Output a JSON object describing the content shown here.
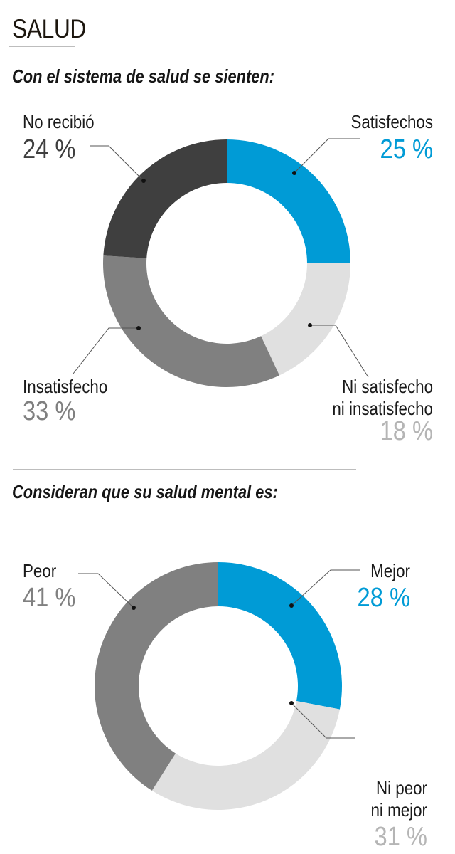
{
  "header": {
    "title": "SALUD"
  },
  "chart_data": [
    {
      "type": "pie",
      "variant": "donut",
      "title": "Con el sistema de salud se sienten:",
      "unit": "%",
      "start": "top, clockwise",
      "slices": [
        {
          "label": "Satisfechos",
          "value": 25,
          "display": "25 %",
          "color": "#009bd6",
          "value_color": "#009bd6"
        },
        {
          "label": "Ni satisfecho ni insatisfecho",
          "label_lines": [
            "Ni satisfecho",
            "ni insatisfecho"
          ],
          "value": 18,
          "display": "18 %",
          "color": "#e0e0e0",
          "value_color": "#b5b5b5"
        },
        {
          "label": "Insatisfecho",
          "value": 33,
          "display": "33 %",
          "color": "#808080",
          "value_color": "#808080"
        },
        {
          "label": "No recibió",
          "value": 24,
          "display": "24 %",
          "color": "#3f3f3f",
          "value_color": "#3f3f3f"
        }
      ]
    },
    {
      "type": "pie",
      "variant": "donut",
      "title": "Consideran que su salud mental es:",
      "unit": "%",
      "start": "top, clockwise",
      "slices": [
        {
          "label": "Mejor",
          "value": 28,
          "display": "28 %",
          "color": "#009bd6",
          "value_color": "#009bd6"
        },
        {
          "label": "Ni peor ni mejor",
          "label_lines": [
            "Ni peor",
            "ni mejor"
          ],
          "value": 31,
          "display": "31 %",
          "color": "#e0e0e0",
          "value_color": "#b5b5b5"
        },
        {
          "label": "Peor",
          "value": 41,
          "display": "41 %",
          "color": "#808080",
          "value_color": "#808080"
        }
      ]
    }
  ]
}
